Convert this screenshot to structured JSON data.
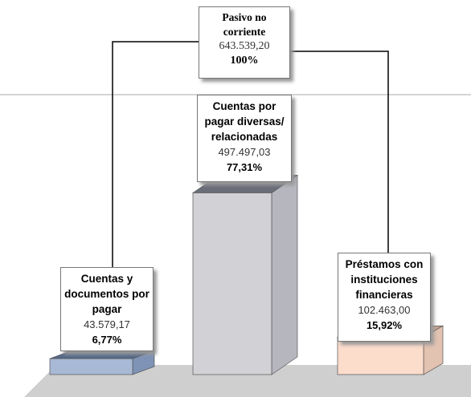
{
  "chart_data": {
    "type": "bar",
    "title": "Pasivo no corriente",
    "total": {
      "value": 643539.2,
      "label": "643.539,20"
    },
    "total_share": {
      "value": 100,
      "label": "100%"
    },
    "categories": [
      "Cuentas y documentos por pagar",
      "Cuentas por pagar diversas/ relacionadas",
      "Préstamos con instituciones financieras"
    ],
    "values": [
      43579.17,
      497497.03,
      102463.0
    ],
    "value_labels": [
      "43.579,17",
      "497.497,03",
      "102.463,00"
    ],
    "shares": [
      6.77,
      77.31,
      15.92
    ],
    "share_labels": [
      "6,77%",
      "77,31%",
      "15,92%"
    ],
    "colors": [
      {
        "front": "#a8b9d6",
        "top": "#55698a",
        "side": "#7e93b5"
      },
      {
        "front": "#d2d2d6",
        "top": "#6a6e78",
        "side": "#b6b6be"
      },
      {
        "front": "#fcdccb",
        "top": "#c6a693",
        "side": "#e2c2b0"
      }
    ]
  }
}
